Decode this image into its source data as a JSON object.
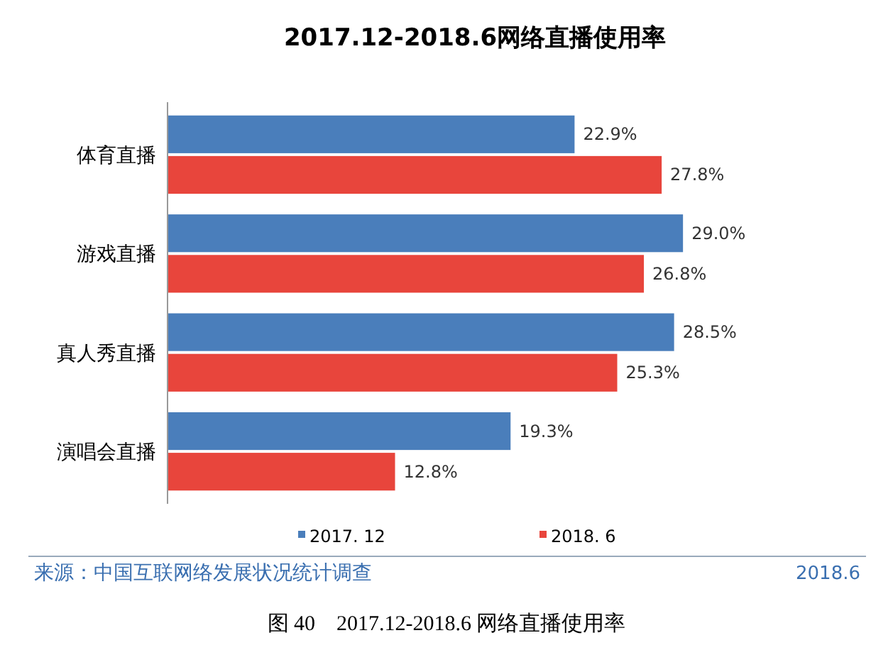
{
  "chart_data": {
    "type": "bar",
    "orientation": "horizontal",
    "title": "2017.12-2018.6网络直播使用率",
    "categories": [
      "体育直播",
      "游戏直播",
      "真人秀直播",
      "演唱会直播"
    ],
    "series": [
      {
        "name": "2017. 12",
        "color": "#4a7ebb",
        "values": [
          22.9,
          29.0,
          28.5,
          19.3
        ],
        "value_labels": [
          "22.9%",
          "29.0%",
          "28.5%",
          "19.3%"
        ]
      },
      {
        "name": "2018. 6",
        "color": "#e8453c",
        "values": [
          27.8,
          26.8,
          25.3,
          12.8
        ],
        "value_labels": [
          "27.8%",
          "26.8%",
          "25.3%",
          "12.8%"
        ]
      }
    ],
    "legend": "bottom",
    "grid": false,
    "annotations": [
      "来源：中国互联网络发展状况统计调查",
      "2018.6",
      "图 40　2017.12-2018.6 网络直播使用率"
    ]
  }
}
